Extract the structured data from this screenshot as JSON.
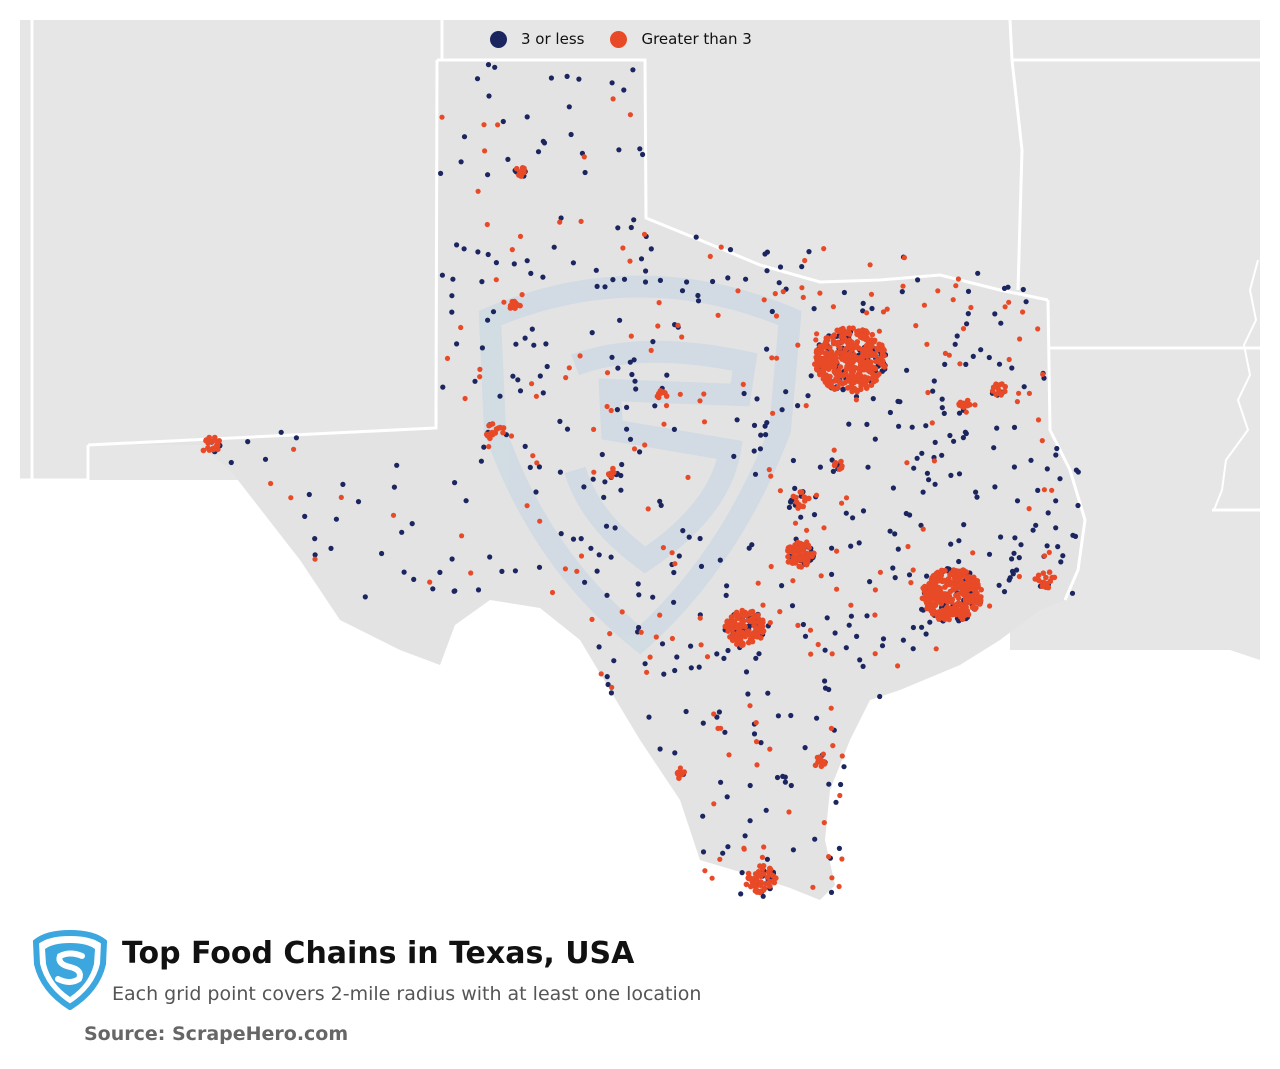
{
  "legend": {
    "items": [
      {
        "label": "3 or less",
        "color": "#1b2560"
      },
      {
        "label": "Greater than 3",
        "color": "#e84a27"
      }
    ]
  },
  "colors": {
    "land_other": "#e6e6e6",
    "land_texas": "#e3e3e3",
    "borders": "#ffffff",
    "watermark": "#c7d7e3",
    "logo": "#3ba7de"
  },
  "header": {
    "title": "Top Food Chains in Texas, USA",
    "subtitle": "Each grid point covers 2-mile radius with at least one location",
    "source": "Source: ScrapeHero.com"
  },
  "icons": {
    "logo": "scrapehero-shield-s-icon",
    "watermark": "scrapehero-shield-watermark"
  }
}
